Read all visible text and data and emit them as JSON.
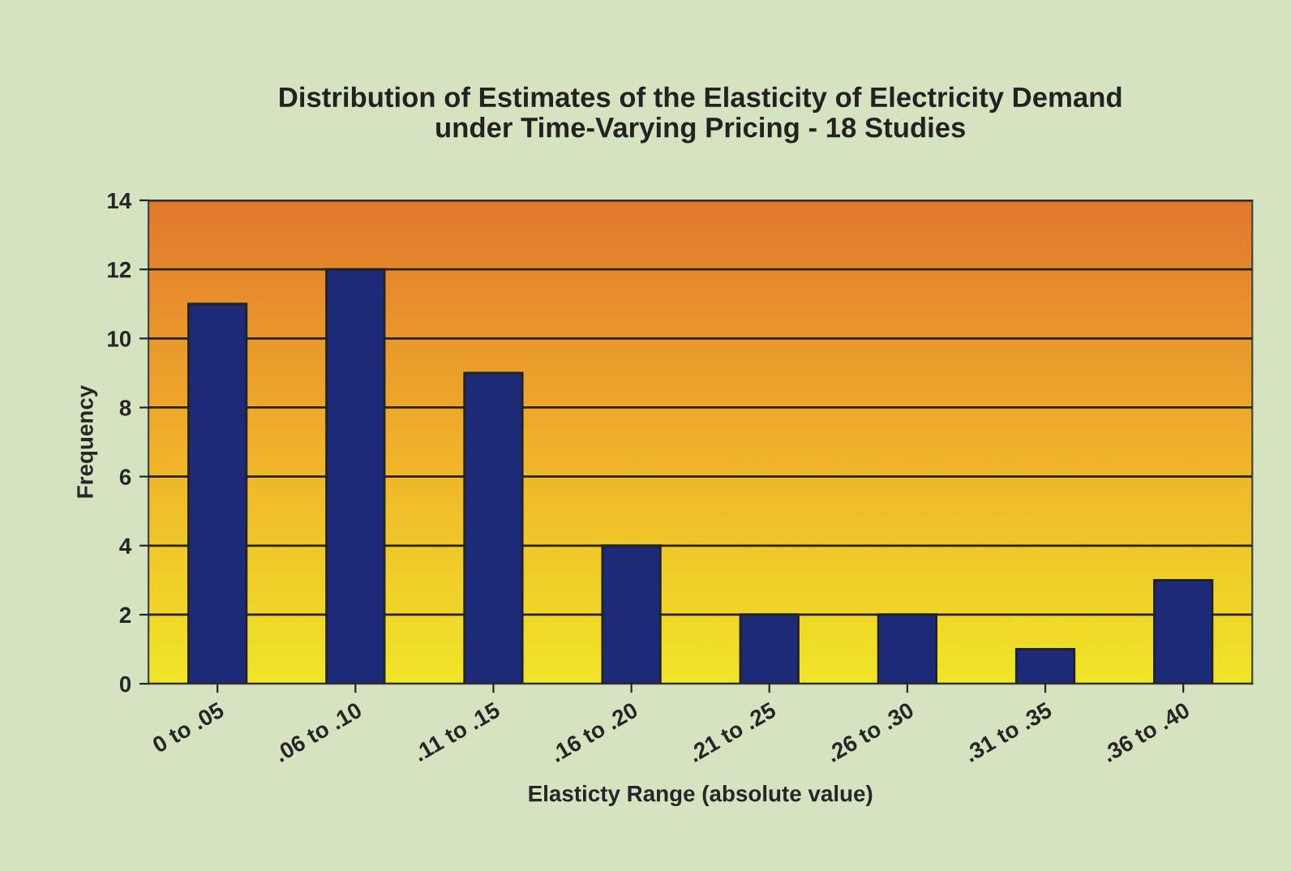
{
  "chart_data": {
    "type": "bar",
    "title": "Distribution of Estimates of the Elasticity of Electricity Demand\nunder Time-Varying Pricing - 18 Studies",
    "xlabel": "Elasticty Range (absolute value)",
    "ylabel": "Frequency",
    "categories": [
      "0 to .05",
      ".06 to .10",
      ".11 to .15",
      ".16 to .20",
      ".21 to .25",
      ".26 to .30",
      ".31 to .35",
      ".36 to .40"
    ],
    "values": [
      11,
      12,
      9,
      4,
      2,
      2,
      1,
      3
    ],
    "color": "#1c2a78",
    "ylim": [
      0,
      14
    ],
    "yticks": [
      0,
      2,
      4,
      6,
      8,
      10,
      12,
      14
    ],
    "grid": "y"
  }
}
